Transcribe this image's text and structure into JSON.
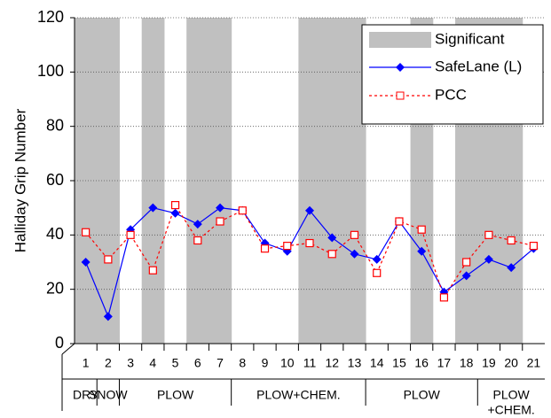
{
  "chart_data": {
    "type": "line",
    "ylabel": "Halliday Grip Number",
    "categories": [
      "1",
      "2",
      "3",
      "4",
      "5",
      "6",
      "7",
      "8",
      "9",
      "10",
      "11",
      "12",
      "13",
      "14",
      "15",
      "16",
      "17",
      "18",
      "19",
      "20",
      "21"
    ],
    "ylim": [
      0,
      120
    ],
    "yticks": [
      0,
      20,
      40,
      60,
      80,
      100,
      120
    ],
    "grid": true,
    "legend": "upper right",
    "shading": {
      "name": "Significant",
      "color": "#c0c0c0",
      "categories": [
        true,
        true,
        false,
        true,
        false,
        true,
        true,
        false,
        false,
        false,
        true,
        true,
        true,
        false,
        false,
        true,
        false,
        true,
        true,
        true,
        false
      ]
    },
    "series": [
      {
        "name": "SafeLane (L)",
        "color": "#0000ff",
        "style": "solid",
        "marker": "diamond",
        "values": [
          30,
          10,
          42,
          50,
          48,
          44,
          50,
          49,
          37,
          34,
          49,
          39,
          33,
          31,
          45,
          34,
          19,
          25,
          31,
          28,
          35
        ]
      },
      {
        "name": "PCC",
        "color": "#ff0000",
        "style": "dashed",
        "marker": "square",
        "values": [
          41,
          31,
          40,
          27,
          51,
          38,
          45,
          49,
          35,
          36,
          37,
          33,
          40,
          26,
          45,
          42,
          17,
          30,
          40,
          38,
          36
        ]
      }
    ],
    "groups": [
      {
        "label": [
          "DRY"
        ],
        "from": "1",
        "to": "1"
      },
      {
        "label": [
          "SNOW"
        ],
        "from": "2",
        "to": "2"
      },
      {
        "label": [
          "PLOW"
        ],
        "from": "3",
        "to": "7"
      },
      {
        "label": [
          "PLOW+CHEM."
        ],
        "from": "8",
        "to": "13"
      },
      {
        "label": [
          "PLOW"
        ],
        "from": "14",
        "to": "18"
      },
      {
        "label": [
          "PLOW",
          "+CHEM."
        ],
        "from": "19",
        "to": "21"
      }
    ]
  }
}
